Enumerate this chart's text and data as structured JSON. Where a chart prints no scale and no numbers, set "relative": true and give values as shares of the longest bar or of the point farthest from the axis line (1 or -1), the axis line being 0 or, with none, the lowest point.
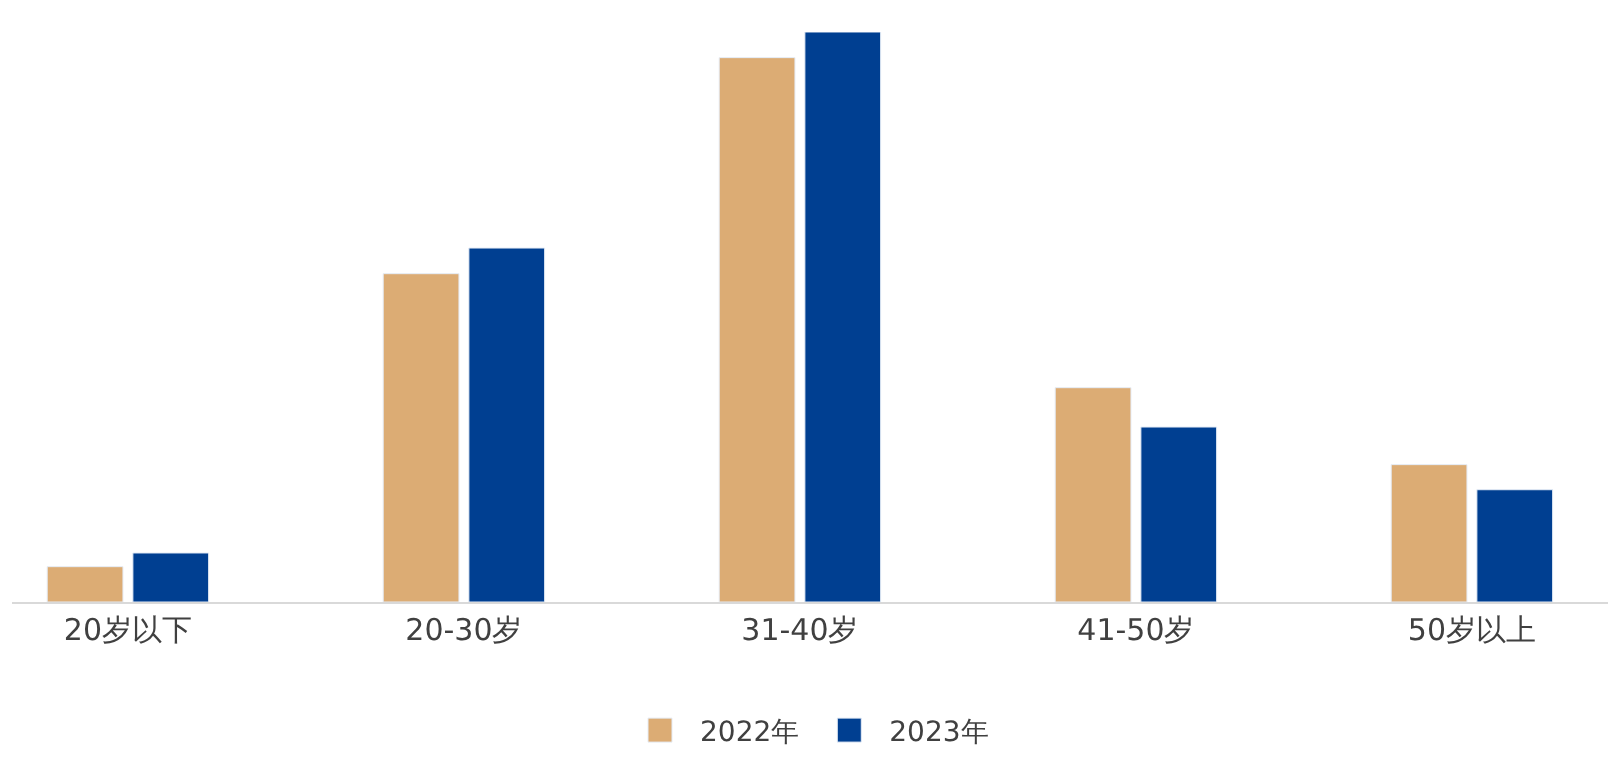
{
  "chart_data": {
    "type": "bar",
    "relative": true,
    "categories": [
      "20岁以下",
      "20-30岁",
      "31-40岁",
      "41-50岁",
      "50岁以上"
    ],
    "series": [
      {
        "name": "2022年",
        "color": "#dcac74",
        "values": [
          0.062,
          0.576,
          0.955,
          0.376,
          0.241
        ]
      },
      {
        "name": "2023年",
        "color": "#003f91",
        "values": [
          0.086,
          0.621,
          1.0,
          0.307,
          0.197
        ]
      }
    ],
    "legend": "bottom"
  }
}
